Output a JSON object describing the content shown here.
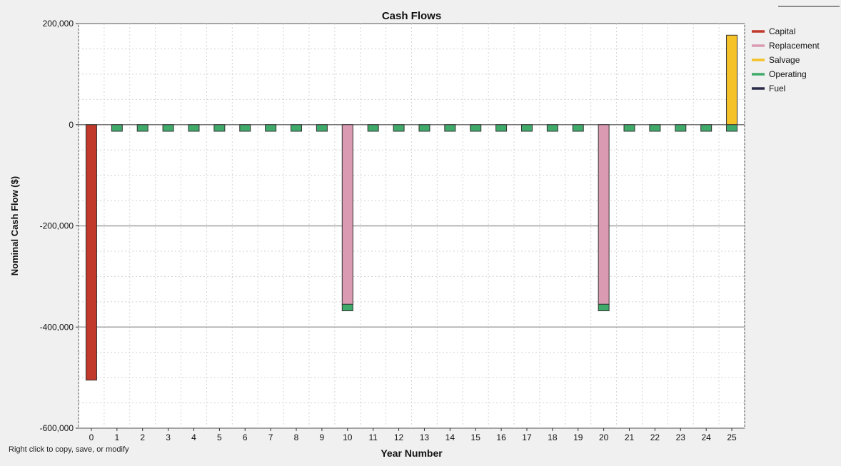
{
  "hint_text": "Right click to copy, save, or modify",
  "chart_data": {
    "type": "bar",
    "title": "Cash Flows",
    "xlabel": "Year Number",
    "ylabel": "Nominal Cash Flow ($)",
    "ylim": [
      -600000,
      200000
    ],
    "yticks": [
      200000,
      0,
      -200000,
      -400000,
      -600000
    ],
    "ytick_labels": [
      "200,000",
      "0",
      "-200,000",
      "-400,000",
      "-600,000"
    ],
    "categories": [
      "0",
      "1",
      "2",
      "3",
      "4",
      "5",
      "6",
      "7",
      "8",
      "9",
      "10",
      "11",
      "12",
      "13",
      "14",
      "15",
      "16",
      "17",
      "18",
      "19",
      "20",
      "21",
      "22",
      "23",
      "24",
      "25"
    ],
    "grid": true,
    "legend_position": "right",
    "stacked": true,
    "series": [
      {
        "name": "Capital",
        "color": "#c0392b",
        "values": [
          -505000,
          0,
          0,
          0,
          0,
          0,
          0,
          0,
          0,
          0,
          0,
          0,
          0,
          0,
          0,
          0,
          0,
          0,
          0,
          0,
          0,
          0,
          0,
          0,
          0,
          0
        ]
      },
      {
        "name": "Replacement",
        "color": "#d99ab2",
        "values": [
          0,
          0,
          0,
          0,
          0,
          0,
          0,
          0,
          0,
          0,
          -355000,
          0,
          0,
          0,
          0,
          0,
          0,
          0,
          0,
          0,
          -355000,
          0,
          0,
          0,
          0,
          0
        ]
      },
      {
        "name": "Salvage",
        "color": "#f5c228",
        "values": [
          0,
          0,
          0,
          0,
          0,
          0,
          0,
          0,
          0,
          0,
          0,
          0,
          0,
          0,
          0,
          0,
          0,
          0,
          0,
          0,
          0,
          0,
          0,
          0,
          0,
          177000
        ]
      },
      {
        "name": "Operating",
        "color": "#3faa6a",
        "values": [
          0,
          -13000,
          -13000,
          -13000,
          -13000,
          -13000,
          -13000,
          -13000,
          -13000,
          -13000,
          -13000,
          -13000,
          -13000,
          -13000,
          -13000,
          -13000,
          -13000,
          -13000,
          -13000,
          -13000,
          -13000,
          -13000,
          -13000,
          -13000,
          -13000,
          -13000
        ]
      },
      {
        "name": "Fuel",
        "color": "#2a2a4a",
        "values": [
          0,
          0,
          0,
          0,
          0,
          0,
          0,
          0,
          0,
          0,
          0,
          0,
          0,
          0,
          0,
          0,
          0,
          0,
          0,
          0,
          0,
          0,
          0,
          0,
          0,
          0
        ]
      }
    ]
  }
}
